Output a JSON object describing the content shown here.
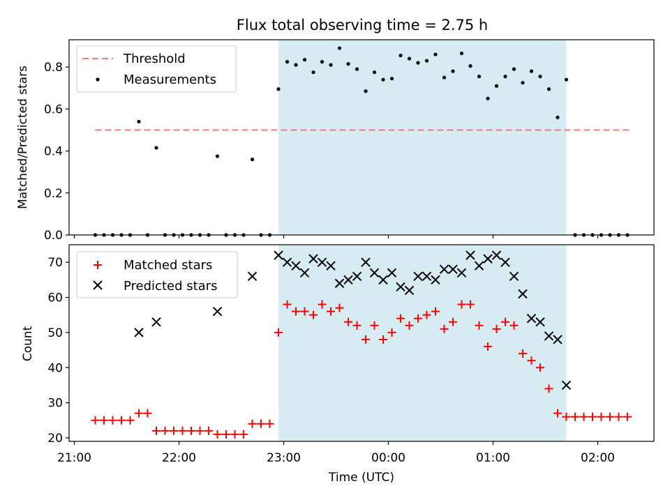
{
  "title": "Flux total observing time = 2.75 h",
  "colors": {
    "threshold": "#f47a7a",
    "measurement": "#000000",
    "matched": "#ff0000",
    "predicted": "#000000",
    "span": "#add8e6"
  },
  "chart_data": [
    {
      "type": "scatter",
      "panel": "top",
      "ylabel": "Matched/Predicted stars",
      "xlabel": "",
      "ylim": [
        0,
        0.93
      ],
      "yticks": [
        "0.0",
        "0.2",
        "0.4",
        "0.6",
        "0.8"
      ],
      "ytick_values": [
        0.0,
        0.2,
        0.4,
        0.6,
        0.8
      ],
      "legend": {
        "position": "upper-left",
        "entries": [
          "Threshold",
          "Measurements"
        ]
      },
      "threshold": {
        "name": "Threshold",
        "value": 0.5,
        "x_start": "21:12",
        "x_end": "02:18",
        "style": "dashed"
      },
      "shaded_span": {
        "x_start": "22:57",
        "x_end": "01:42"
      },
      "series": [
        {
          "name": "Measurements",
          "points": [
            [
              "21:12",
              0
            ],
            [
              "21:17",
              0
            ],
            [
              "21:22",
              0
            ],
            [
              "21:27",
              0
            ],
            [
              "21:32",
              0
            ],
            [
              "21:37",
              0.54
            ],
            [
              "21:42",
              0
            ],
            [
              "21:47",
              0.415
            ],
            [
              "21:52",
              0
            ],
            [
              "21:57",
              0
            ],
            [
              "22:02",
              0
            ],
            [
              "22:07",
              0
            ],
            [
              "22:12",
              0
            ],
            [
              "22:17",
              0
            ],
            [
              "22:22",
              0.375
            ],
            [
              "22:27",
              0
            ],
            [
              "22:32",
              0
            ],
            [
              "22:37",
              0
            ],
            [
              "22:42",
              0.36
            ],
            [
              "22:47",
              0
            ],
            [
              "22:52",
              0
            ],
            [
              "22:57",
              0.695
            ],
            [
              "23:02",
              0.825
            ],
            [
              "23:07",
              0.81
            ],
            [
              "23:12",
              0.835
            ],
            [
              "23:17",
              0.775
            ],
            [
              "23:22",
              0.825
            ],
            [
              "23:27",
              0.81
            ],
            [
              "23:32",
              0.89
            ],
            [
              "23:37",
              0.815
            ],
            [
              "23:42",
              0.79
            ],
            [
              "23:47",
              0.685
            ],
            [
              "23:52",
              0.775
            ],
            [
              "23:57",
              0.74
            ],
            [
              "00:02",
              0.745
            ],
            [
              "00:07",
              0.855
            ],
            [
              "00:12",
              0.84
            ],
            [
              "00:17",
              0.82
            ],
            [
              "00:22",
              0.83
            ],
            [
              "00:27",
              0.86
            ],
            [
              "00:32",
              0.75
            ],
            [
              "00:37",
              0.78
            ],
            [
              "00:42",
              0.865
            ],
            [
              "00:47",
              0.805
            ],
            [
              "00:52",
              0.755
            ],
            [
              "00:57",
              0.65
            ],
            [
              "01:02",
              0.71
            ],
            [
              "01:07",
              0.755
            ],
            [
              "01:12",
              0.79
            ],
            [
              "01:17",
              0.725
            ],
            [
              "01:22",
              0.78
            ],
            [
              "01:27",
              0.755
            ],
            [
              "01:32",
              0.695
            ],
            [
              "01:37",
              0.56
            ],
            [
              "01:42",
              0.74
            ],
            [
              "01:47",
              0
            ],
            [
              "01:52",
              0
            ],
            [
              "01:57",
              0
            ],
            [
              "02:02",
              0
            ],
            [
              "02:07",
              0
            ],
            [
              "02:12",
              0
            ],
            [
              "02:17",
              0
            ]
          ]
        }
      ]
    },
    {
      "type": "scatter",
      "panel": "bottom",
      "ylabel": "Count",
      "xlabel": "Time (UTC)",
      "ylim": [
        19,
        75
      ],
      "yticks": [
        "20",
        "30",
        "40",
        "50",
        "60",
        "70"
      ],
      "ytick_values": [
        20,
        30,
        40,
        50,
        60,
        70
      ],
      "xticks": [
        "21:00",
        "22:00",
        "23:00",
        "00:00",
        "01:00",
        "02:00"
      ],
      "legend": {
        "position": "upper-left",
        "entries": [
          "Matched stars",
          "Predicted stars"
        ]
      },
      "shaded_span": {
        "x_start": "22:57",
        "x_end": "01:42"
      },
      "series": [
        {
          "name": "Matched stars",
          "marker": "plus",
          "points": [
            [
              "21:12",
              25
            ],
            [
              "21:17",
              25
            ],
            [
              "21:22",
              25
            ],
            [
              "21:27",
              25
            ],
            [
              "21:32",
              25
            ],
            [
              "21:37",
              27
            ],
            [
              "21:42",
              27
            ],
            [
              "21:47",
              22
            ],
            [
              "21:52",
              22
            ],
            [
              "21:57",
              22
            ],
            [
              "22:02",
              22
            ],
            [
              "22:07",
              22
            ],
            [
              "22:12",
              22
            ],
            [
              "22:17",
              22
            ],
            [
              "22:22",
              21
            ],
            [
              "22:27",
              21
            ],
            [
              "22:32",
              21
            ],
            [
              "22:37",
              21
            ],
            [
              "22:42",
              24
            ],
            [
              "22:47",
              24
            ],
            [
              "22:52",
              24
            ],
            [
              "22:57",
              50
            ],
            [
              "23:02",
              58
            ],
            [
              "23:07",
              56
            ],
            [
              "23:12",
              56
            ],
            [
              "23:17",
              55
            ],
            [
              "23:22",
              58
            ],
            [
              "23:27",
              56
            ],
            [
              "23:32",
              57
            ],
            [
              "23:37",
              53
            ],
            [
              "23:42",
              52
            ],
            [
              "23:47",
              48
            ],
            [
              "23:52",
              52
            ],
            [
              "23:57",
              48
            ],
            [
              "00:02",
              50
            ],
            [
              "00:07",
              54
            ],
            [
              "00:12",
              52
            ],
            [
              "00:17",
              54
            ],
            [
              "00:22",
              55
            ],
            [
              "00:27",
              56
            ],
            [
              "00:32",
              51
            ],
            [
              "00:37",
              53
            ],
            [
              "00:42",
              58
            ],
            [
              "00:47",
              58
            ],
            [
              "00:52",
              52
            ],
            [
              "00:57",
              46
            ],
            [
              "01:02",
              51
            ],
            [
              "01:07",
              53
            ],
            [
              "01:12",
              52
            ],
            [
              "01:17",
              44
            ],
            [
              "01:22",
              42
            ],
            [
              "01:27",
              40
            ],
            [
              "01:32",
              34
            ],
            [
              "01:37",
              27
            ],
            [
              "01:42",
              26
            ],
            [
              "01:47",
              26
            ],
            [
              "01:52",
              26
            ],
            [
              "01:57",
              26
            ],
            [
              "02:02",
              26
            ],
            [
              "02:07",
              26
            ],
            [
              "02:12",
              26
            ],
            [
              "02:17",
              26
            ]
          ]
        },
        {
          "name": "Predicted stars",
          "marker": "x",
          "points": [
            [
              "21:37",
              50
            ],
            [
              "21:47",
              53
            ],
            [
              "22:22",
              56
            ],
            [
              "22:42",
              66
            ],
            [
              "22:57",
              72
            ],
            [
              "23:02",
              70
            ],
            [
              "23:07",
              69
            ],
            [
              "23:12",
              67
            ],
            [
              "23:17",
              71
            ],
            [
              "23:22",
              70
            ],
            [
              "23:27",
              69
            ],
            [
              "23:32",
              64
            ],
            [
              "23:37",
              65
            ],
            [
              "23:42",
              66
            ],
            [
              "23:47",
              70
            ],
            [
              "23:52",
              67
            ],
            [
              "23:57",
              65
            ],
            [
              "00:02",
              67
            ],
            [
              "00:07",
              63
            ],
            [
              "00:12",
              62
            ],
            [
              "00:17",
              66
            ],
            [
              "00:22",
              66
            ],
            [
              "00:27",
              65
            ],
            [
              "00:32",
              68
            ],
            [
              "00:37",
              68
            ],
            [
              "00:42",
              67
            ],
            [
              "00:47",
              72
            ],
            [
              "00:52",
              69
            ],
            [
              "00:57",
              71
            ],
            [
              "01:02",
              72
            ],
            [
              "01:07",
              70
            ],
            [
              "01:12",
              66
            ],
            [
              "01:17",
              61
            ],
            [
              "01:22",
              54
            ],
            [
              "01:27",
              53
            ],
            [
              "01:32",
              49
            ],
            [
              "01:37",
              48
            ],
            [
              "01:42",
              35
            ]
          ]
        }
      ]
    }
  ]
}
